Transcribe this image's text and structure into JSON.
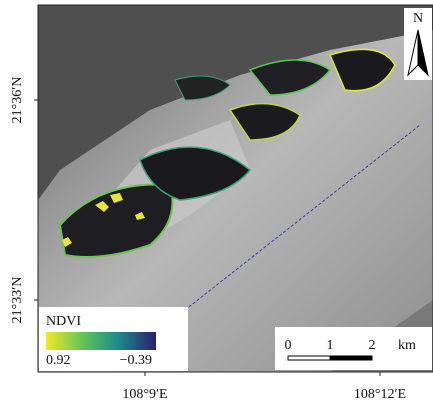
{
  "map": {
    "lat_labels": [
      "21°36′N",
      "21°33′N"
    ],
    "lon_labels": [
      "108°9′E",
      "108°12′E"
    ],
    "north": "N",
    "legend": {
      "title": "NDVI",
      "max_label": "0.92",
      "min_label": "−0.39"
    },
    "scale_bar": {
      "labels": [
        "0",
        "1",
        "2"
      ],
      "unit": "km"
    }
  }
}
